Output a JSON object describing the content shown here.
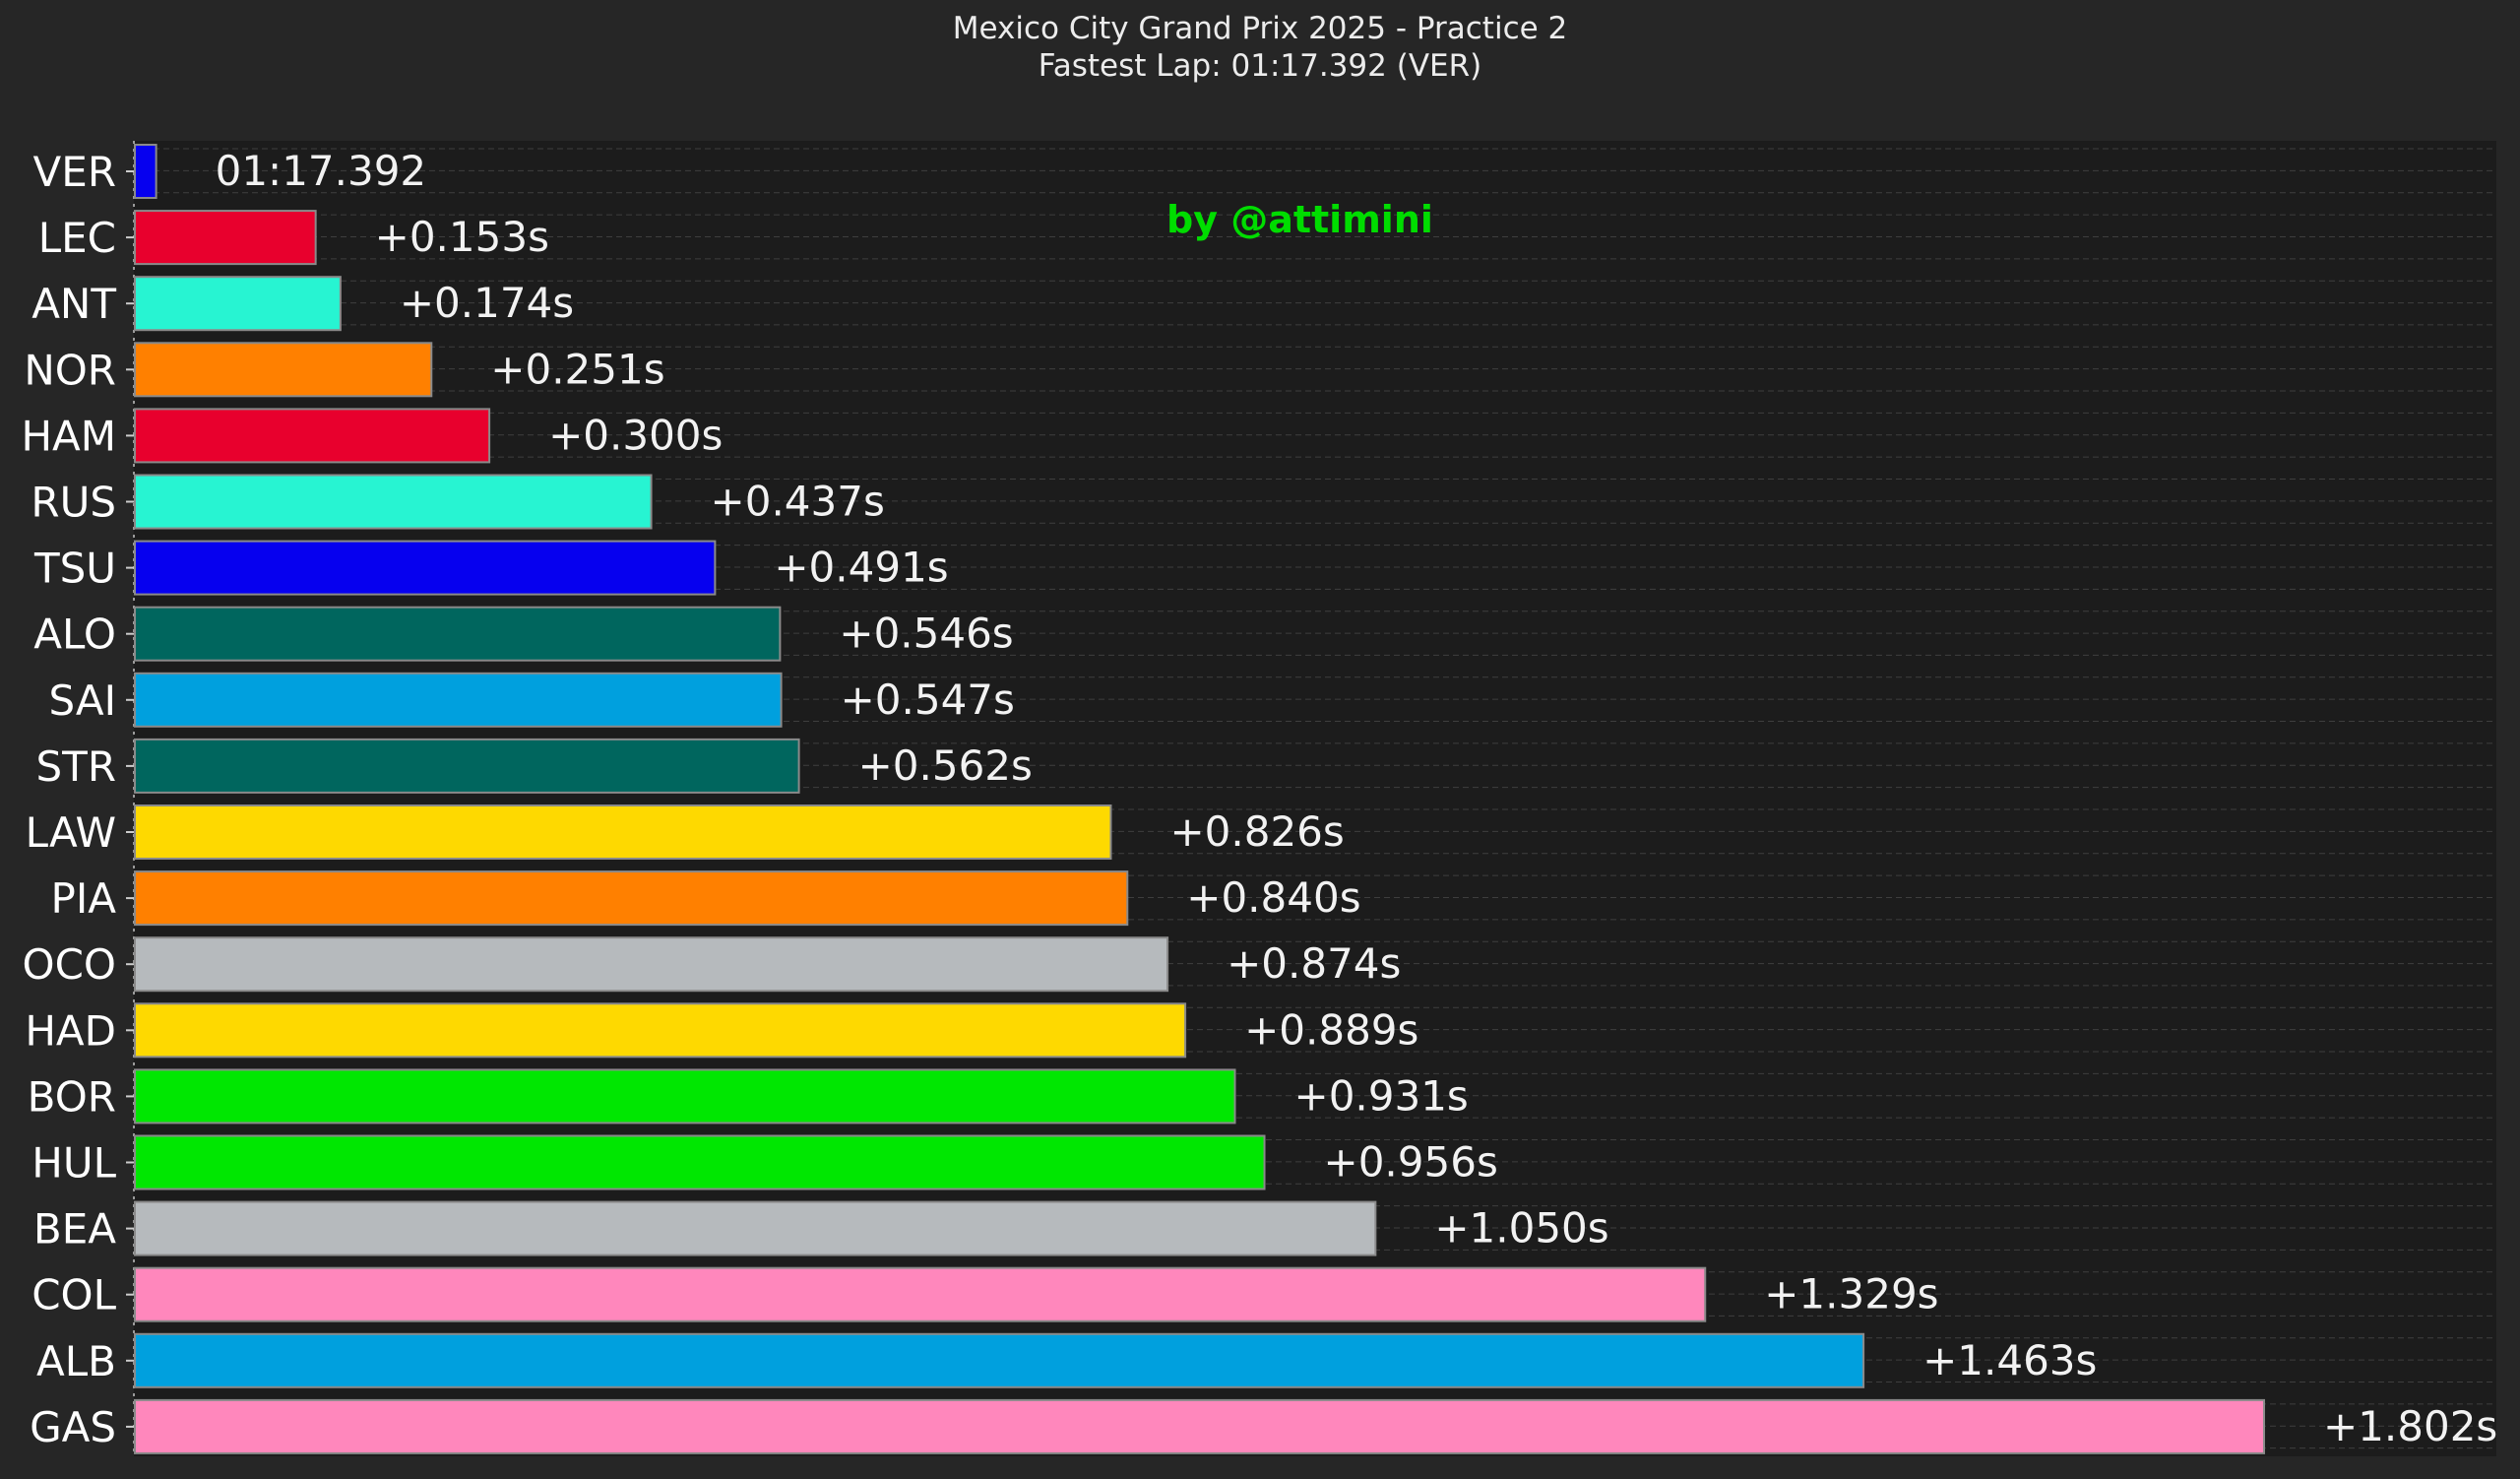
{
  "header": {
    "title": "Mexico City Grand Prix 2025 - Practice 2",
    "subtitle": "Fastest Lap: 01:17.392 (VER)"
  },
  "watermark": "by @attimini",
  "colors": {
    "background": "#262626",
    "plot_background": "#1c1c1c",
    "grid": "#5a5a5a",
    "bar_edge": "#8a8a8a"
  },
  "chart_data": {
    "type": "bar",
    "orientation": "horizontal",
    "title": "Mexico City Grand Prix 2025 - Practice 2",
    "subtitle": "Fastest Lap: 01:17.392 (VER)",
    "xlabel": "",
    "ylabel": "",
    "xlim": [
      0,
      1.802
    ],
    "grid": "horizontal dashed",
    "categories": [
      "VER",
      "LEC",
      "ANT",
      "NOR",
      "HAM",
      "RUS",
      "TSU",
      "ALO",
      "SAI",
      "STR",
      "LAW",
      "PIA",
      "OCO",
      "HAD",
      "BOR",
      "HUL",
      "BEA",
      "COL",
      "ALB",
      "GAS"
    ],
    "values": [
      0.018,
      0.153,
      0.174,
      0.251,
      0.3,
      0.437,
      0.491,
      0.546,
      0.547,
      0.562,
      0.826,
      0.84,
      0.874,
      0.889,
      0.931,
      0.956,
      1.05,
      1.329,
      1.463,
      1.802
    ],
    "gaps": [
      0.0,
      0.153,
      0.174,
      0.251,
      0.3,
      0.437,
      0.491,
      0.546,
      0.547,
      0.562,
      0.826,
      0.84,
      0.874,
      0.889,
      0.931,
      0.956,
      1.05,
      1.329,
      1.463,
      1.802
    ],
    "labels": [
      "01:17.392",
      "+0.153s",
      "+0.174s",
      "+0.251s",
      "+0.300s",
      "+0.437s",
      "+0.491s",
      "+0.546s",
      "+0.547s",
      "+0.562s",
      "+0.826s",
      "+0.840s",
      "+0.874s",
      "+0.889s",
      "+0.931s",
      "+0.956s",
      "+1.050s",
      "+1.329s",
      "+1.463s",
      "+1.802s"
    ],
    "colors": [
      "#0600ef",
      "#e8002d",
      "#27f4d2",
      "#ff8000",
      "#e8002d",
      "#27f4d2",
      "#0600ef",
      "#00665e",
      "#00a0de",
      "#00665e",
      "#fed900",
      "#ff8000",
      "#b6babd",
      "#fed900",
      "#00e701",
      "#00e701",
      "#b6babd",
      "#ff87bc",
      "#00a0de",
      "#ff87bc"
    ]
  }
}
